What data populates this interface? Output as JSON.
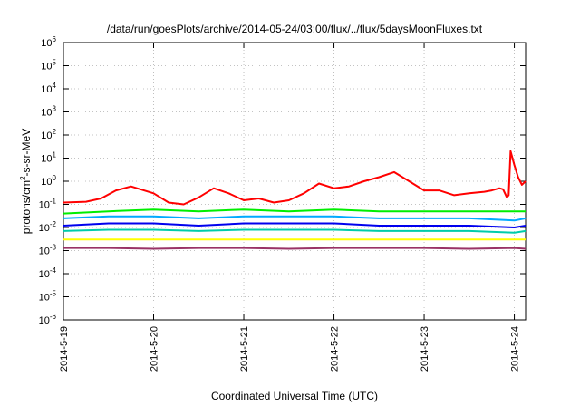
{
  "chart_data": {
    "type": "line",
    "title": "/data/run/goesPlots/archive/2014-05-24/03:00/flux/../flux/5daysMoonFluxes.txt",
    "xlabel": "Coordinated Universal Time (UTC)",
    "ylabel": {
      "prefix": "protons/cm",
      "sup": "2",
      "suffix": "-s-sr-MeV"
    },
    "y_scale": "log",
    "ylim": [
      1e-06,
      1000000.0
    ],
    "y_ticks": [
      {
        "value": 1e-06,
        "base": "10",
        "exp": "-6"
      },
      {
        "value": 1e-05,
        "base": "10",
        "exp": "-5"
      },
      {
        "value": 0.0001,
        "base": "10",
        "exp": "-4"
      },
      {
        "value": 0.001,
        "base": "10",
        "exp": "-3"
      },
      {
        "value": 0.01,
        "base": "10",
        "exp": "-2"
      },
      {
        "value": 0.1,
        "base": "10",
        "exp": "-1"
      },
      {
        "value": 1,
        "base": "10",
        "exp": "0"
      },
      {
        "value": 10,
        "base": "10",
        "exp": "1"
      },
      {
        "value": 100,
        "base": "10",
        "exp": "2"
      },
      {
        "value": 1000,
        "base": "10",
        "exp": "3"
      },
      {
        "value": 10000,
        "base": "10",
        "exp": "4"
      },
      {
        "value": 100000,
        "base": "10",
        "exp": "5"
      },
      {
        "value": 1000000,
        "base": "10",
        "exp": "6"
      }
    ],
    "xlim": [
      "2014-05-19 00:00",
      "2014-05-24 03:00"
    ],
    "x_ticks": [
      "2014-5-19",
      "2014-5-20",
      "2014-5-21",
      "2014-5-22",
      "2014-5-23",
      "2014-5-24"
    ],
    "grid": true,
    "series": [
      {
        "color": "#ff0000",
        "x": [
          "2014-05-19 00:00",
          "2014-05-19 06:00",
          "2014-05-19 10:00",
          "2014-05-19 14:00",
          "2014-05-19 18:00",
          "2014-05-20 00:00",
          "2014-05-20 04:00",
          "2014-05-20 08:00",
          "2014-05-20 12:00",
          "2014-05-20 16:00",
          "2014-05-20 20:00",
          "2014-05-21 00:00",
          "2014-05-21 04:00",
          "2014-05-21 08:00",
          "2014-05-21 12:00",
          "2014-05-21 16:00",
          "2014-05-21 20:00",
          "2014-05-22 00:00",
          "2014-05-22 04:00",
          "2014-05-22 08:00",
          "2014-05-22 12:00",
          "2014-05-22 16:00",
          "2014-05-22 20:00",
          "2014-05-23 00:00",
          "2014-05-23 04:00",
          "2014-05-23 08:00",
          "2014-05-23 12:00",
          "2014-05-23 16:00",
          "2014-05-23 18:00",
          "2014-05-23 20:00",
          "2014-05-23 21:00",
          "2014-05-23 22:00",
          "2014-05-23 22:30",
          "2014-05-23 23:00",
          "2014-05-24 00:00",
          "2014-05-24 01:00",
          "2014-05-24 02:00",
          "2014-05-24 03:00"
        ],
        "y": [
          0.12,
          0.13,
          0.18,
          0.4,
          0.6,
          0.3,
          0.12,
          0.1,
          0.2,
          0.5,
          0.3,
          0.15,
          0.18,
          0.12,
          0.15,
          0.3,
          0.8,
          0.5,
          0.6,
          1.0,
          1.5,
          2.5,
          1.0,
          0.4,
          0.4,
          0.25,
          0.3,
          0.35,
          0.4,
          0.5,
          0.45,
          0.2,
          0.25,
          20,
          5,
          1.5,
          0.7,
          1.0
        ]
      },
      {
        "color": "#00ee00",
        "x": [
          "2014-05-19 00:00",
          "2014-05-19 12:00",
          "2014-05-20 00:00",
          "2014-05-20 12:00",
          "2014-05-21 00:00",
          "2014-05-21 12:00",
          "2014-05-22 00:00",
          "2014-05-22 12:00",
          "2014-05-23 00:00",
          "2014-05-23 12:00",
          "2014-05-24 00:00",
          "2014-05-24 03:00"
        ],
        "y": [
          0.04,
          0.05,
          0.06,
          0.05,
          0.06,
          0.05,
          0.06,
          0.05,
          0.05,
          0.05,
          0.05,
          0.05
        ]
      },
      {
        "color": "#00aaff",
        "x": [
          "2014-05-19 00:00",
          "2014-05-19 12:00",
          "2014-05-20 00:00",
          "2014-05-20 12:00",
          "2014-05-21 00:00",
          "2014-05-21 12:00",
          "2014-05-22 00:00",
          "2014-05-22 12:00",
          "2014-05-23 00:00",
          "2014-05-23 12:00",
          "2014-05-24 00:00",
          "2014-05-24 03:00"
        ],
        "y": [
          0.025,
          0.03,
          0.03,
          0.025,
          0.03,
          0.03,
          0.03,
          0.025,
          0.025,
          0.025,
          0.02,
          0.025
        ]
      },
      {
        "color": "#0000ee",
        "x": [
          "2014-05-19 00:00",
          "2014-05-19 12:00",
          "2014-05-20 00:00",
          "2014-05-20 12:00",
          "2014-05-21 00:00",
          "2014-05-21 12:00",
          "2014-05-22 00:00",
          "2014-05-22 12:00",
          "2014-05-23 00:00",
          "2014-05-23 12:00",
          "2014-05-24 00:00",
          "2014-05-24 03:00"
        ],
        "y": [
          0.012,
          0.015,
          0.015,
          0.012,
          0.015,
          0.015,
          0.015,
          0.012,
          0.012,
          0.012,
          0.01,
          0.012
        ]
      },
      {
        "color": "#00ccaa",
        "x": [
          "2014-05-19 00:00",
          "2014-05-19 12:00",
          "2014-05-20 00:00",
          "2014-05-20 12:00",
          "2014-05-21 00:00",
          "2014-05-21 12:00",
          "2014-05-22 00:00",
          "2014-05-22 12:00",
          "2014-05-23 00:00",
          "2014-05-23 12:00",
          "2014-05-24 00:00",
          "2014-05-24 03:00"
        ],
        "y": [
          0.007,
          0.008,
          0.008,
          0.007,
          0.008,
          0.008,
          0.008,
          0.007,
          0.007,
          0.007,
          0.006,
          0.007
        ]
      },
      {
        "color": "#ffff00",
        "x": [
          "2014-05-19 00:00",
          "2014-05-19 12:00",
          "2014-05-20 00:00",
          "2014-05-20 12:00",
          "2014-05-21 00:00",
          "2014-05-21 12:00",
          "2014-05-22 00:00",
          "2014-05-22 12:00",
          "2014-05-23 00:00",
          "2014-05-23 12:00",
          "2014-05-24 00:00",
          "2014-05-24 03:00"
        ],
        "y": [
          0.003,
          0.003,
          0.003,
          0.003,
          0.003,
          0.003,
          0.003,
          0.003,
          0.003,
          0.003,
          0.003,
          0.003
        ]
      },
      {
        "color": "#993366",
        "x": [
          "2014-05-19 00:00",
          "2014-05-19 12:00",
          "2014-05-20 00:00",
          "2014-05-20 12:00",
          "2014-05-21 00:00",
          "2014-05-21 12:00",
          "2014-05-22 00:00",
          "2014-05-22 12:00",
          "2014-05-23 00:00",
          "2014-05-23 12:00",
          "2014-05-24 00:00",
          "2014-05-24 03:00"
        ],
        "y": [
          0.0013,
          0.0013,
          0.0012,
          0.0013,
          0.0013,
          0.0012,
          0.0013,
          0.0013,
          0.0013,
          0.0012,
          0.0013,
          0.0012
        ]
      }
    ]
  }
}
